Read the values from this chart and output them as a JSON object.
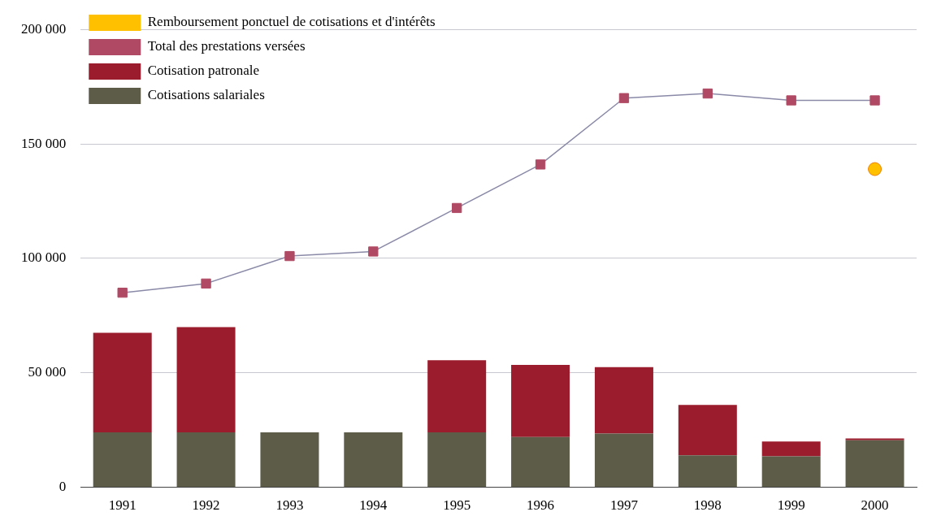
{
  "chart_data": {
    "type": "bar",
    "categories": [
      "1991",
      "1992",
      "1993",
      "1994",
      "1995",
      "1996",
      "1997",
      "1998",
      "1999",
      "2000"
    ],
    "series": [
      {
        "name": "Remboursement ponctuel de cotisations et d'intérêts",
        "type": "line",
        "marker": "circle",
        "color": "#ffc000",
        "values": [
          null,
          null,
          null,
          null,
          null,
          null,
          null,
          null,
          null,
          139000
        ]
      },
      {
        "name": "Total des prestations versées",
        "type": "line",
        "marker": "square",
        "color": "#b04a64",
        "values": [
          85000,
          89000,
          101000,
          103000,
          122000,
          141000,
          170000,
          172000,
          169000,
          169000
        ]
      },
      {
        "name": "Cotisations salariales",
        "color": "#5c5c48",
        "values": [
          24000,
          24000,
          24000,
          24000,
          24000,
          22000,
          23500,
          14000,
          13500,
          20500
        ]
      },
      {
        "name": "Cotisation patronale",
        "color": "#9b1c2c",
        "values": [
          43500,
          46000,
          0,
          0,
          31500,
          31500,
          29000,
          22000,
          6500,
          800
        ]
      }
    ],
    "stacked": true,
    "ylim": [
      0,
      200000
    ],
    "yticks": [
      {
        "value": 0,
        "label": "0"
      },
      {
        "value": 50000,
        "label": "50 000"
      },
      {
        "value": 100000,
        "label": "100 000"
      },
      {
        "value": 150000,
        "label": "150 000"
      },
      {
        "value": 200000,
        "label": "200 000"
      }
    ],
    "grid": "y",
    "legend": "top left"
  }
}
